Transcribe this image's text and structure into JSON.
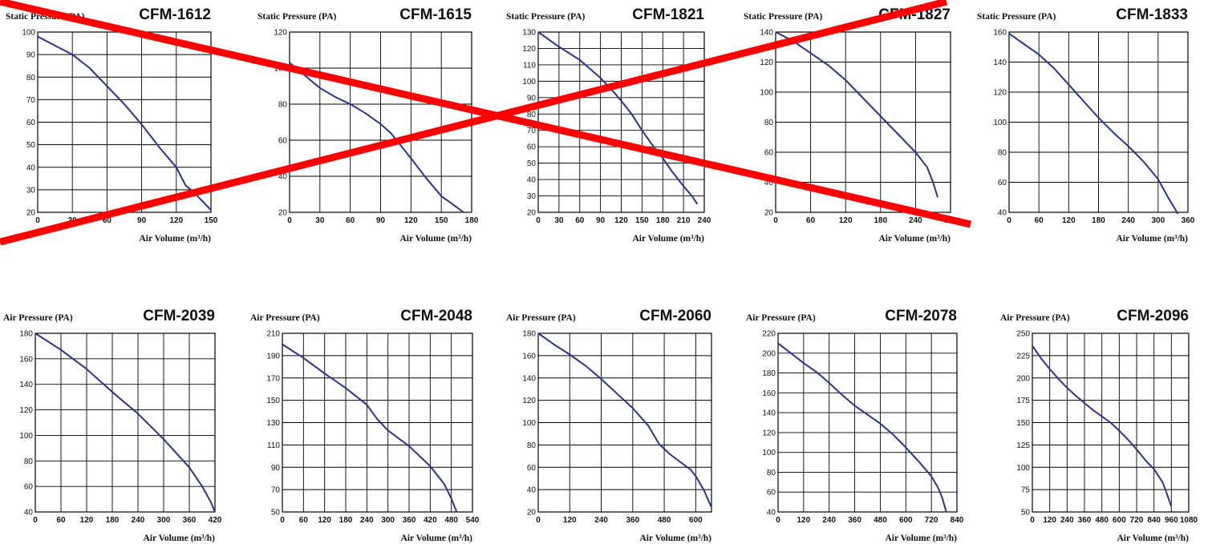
{
  "colors": {
    "curve": "#2e3190",
    "cross": "#ff0000",
    "grid": "#000000"
  },
  "chart_data": [
    {
      "type": "line",
      "title": "CFM-1612",
      "ylabel": "Static Pressure (PA)",
      "xlabel": "Air Volume (m³/h)",
      "xlim": [
        0,
        150
      ],
      "ylim": [
        20,
        100
      ],
      "xticks": [
        0,
        30,
        60,
        90,
        120,
        150
      ],
      "yticks": [
        20,
        30,
        40,
        50,
        60,
        70,
        80,
        90,
        100
      ],
      "x": [
        0,
        15,
        30,
        45,
        60,
        75,
        90,
        105,
        120,
        128,
        135,
        150
      ],
      "y": [
        98,
        94,
        90,
        84,
        76,
        68,
        59,
        49,
        40,
        32,
        29,
        21
      ],
      "crossed_out": true
    },
    {
      "type": "line",
      "title": "CFM-1615",
      "ylabel": "Static Pressure (PA)",
      "xlabel": "Air Volume (m³/h)",
      "xlim": [
        0,
        180
      ],
      "ylim": [
        20,
        120
      ],
      "xticks": [
        0,
        30,
        60,
        90,
        120,
        150,
        180
      ],
      "yticks": [
        20,
        40,
        60,
        80,
        100,
        120
      ],
      "x": [
        0,
        15,
        30,
        45,
        60,
        75,
        90,
        100,
        110,
        120,
        135,
        150,
        160,
        172
      ],
      "y": [
        103,
        96,
        89,
        84,
        80,
        75,
        69,
        64,
        57,
        50,
        39,
        29,
        25,
        20
      ],
      "crossed_out": true
    },
    {
      "type": "line",
      "title": "CFM-1821",
      "ylabel": "Static Pressure (PA)",
      "xlabel": "Air Volume (m³/h)",
      "xlim": [
        0,
        240
      ],
      "ylim": [
        20,
        130
      ],
      "xticks": [
        0,
        30,
        60,
        90,
        120,
        150,
        180,
        210,
        240
      ],
      "yticks": [
        20,
        30,
        40,
        50,
        60,
        70,
        80,
        90,
        100,
        110,
        120,
        130
      ],
      "x": [
        0,
        30,
        60,
        90,
        110,
        120,
        135,
        150,
        165,
        180,
        195,
        210,
        222,
        230
      ],
      "y": [
        130,
        121,
        113,
        102,
        93,
        88,
        80,
        70,
        61,
        53,
        44,
        36,
        30,
        25
      ],
      "crossed_out": true
    },
    {
      "type": "line",
      "title": "CFM-1827",
      "ylabel": "Static Pressure (PA)",
      "xlabel": "Air Volume (m³/h)",
      "xlim": [
        0,
        300
      ],
      "ylim": [
        20,
        140
      ],
      "xticks": [
        0,
        60,
        120,
        180,
        240,
        300
      ],
      "yticks": [
        20,
        40,
        60,
        80,
        100,
        120,
        140
      ],
      "x": [
        0,
        30,
        60,
        90,
        120,
        150,
        180,
        210,
        240,
        260,
        270,
        278
      ],
      "y": [
        140,
        134,
        126,
        118,
        108,
        96,
        84,
        72,
        60,
        50,
        40,
        30
      ],
      "crossed_out": true
    },
    {
      "type": "line",
      "title": "CFM-1833",
      "ylabel": "Static Pressure (PA)",
      "xlabel": "Air Volume (m³/h)",
      "xlim": [
        0,
        360
      ],
      "ylim": [
        40,
        160
      ],
      "xticks": [
        0,
        60,
        120,
        180,
        240,
        300,
        360
      ],
      "yticks": [
        40,
        60,
        80,
        100,
        120,
        140,
        160
      ],
      "x": [
        0,
        30,
        60,
        90,
        120,
        150,
        180,
        210,
        240,
        270,
        300,
        320,
        340
      ],
      "y": [
        159,
        152,
        145,
        136,
        125,
        114,
        103,
        93,
        84,
        74,
        62,
        50,
        39
      ],
      "crossed_out": false
    },
    {
      "type": "line",
      "title": "CFM-2039",
      "ylabel": "Air Pressure (PA)",
      "xlabel": "Air Volume (m³/h)",
      "xlim": [
        0,
        420
      ],
      "ylim": [
        40,
        180
      ],
      "xticks": [
        0,
        60,
        120,
        180,
        240,
        300,
        360,
        420
      ],
      "yticks": [
        40,
        60,
        80,
        100,
        120,
        140,
        160,
        180
      ],
      "x": [
        0,
        60,
        120,
        180,
        240,
        300,
        360,
        390,
        410,
        420
      ],
      "y": [
        180,
        167,
        152,
        134,
        117,
        97,
        75,
        60,
        48,
        40
      ],
      "crossed_out": false
    },
    {
      "type": "line",
      "title": "CFM-2048",
      "ylabel": "Air Pressure (PA)",
      "xlabel": "Air Volume (m³/h)",
      "xlim": [
        0,
        540
      ],
      "ylim": [
        50,
        210
      ],
      "xticks": [
        0,
        60,
        120,
        180,
        240,
        300,
        360,
        420,
        480,
        540
      ],
      "yticks": [
        50,
        70,
        90,
        110,
        130,
        150,
        170,
        190,
        210
      ],
      "x": [
        0,
        60,
        120,
        180,
        240,
        270,
        300,
        360,
        420,
        460,
        480,
        495
      ],
      "y": [
        200,
        188,
        174,
        161,
        146,
        133,
        123,
        109,
        91,
        75,
        62,
        50
      ],
      "crossed_out": false
    },
    {
      "type": "line",
      "title": "CFM-2060",
      "ylabel": "Air Pressure (PA)",
      "xlabel": "Air Volume (m³/h)",
      "xlim": [
        0,
        660
      ],
      "ylim": [
        20,
        180
      ],
      "xticks": [
        0,
        120,
        240,
        360,
        480,
        600
      ],
      "yticks": [
        20,
        40,
        60,
        80,
        100,
        120,
        140,
        160,
        180
      ],
      "x": [
        0,
        60,
        120,
        180,
        240,
        300,
        360,
        420,
        460,
        500,
        540,
        580,
        600,
        630,
        660
      ],
      "y": [
        180,
        170,
        161,
        151,
        139,
        126,
        113,
        97,
        81,
        72,
        65,
        58,
        52,
        40,
        24
      ],
      "crossed_out": false
    },
    {
      "type": "line",
      "title": "CFM-2078",
      "ylabel": "Air Pressure (PA)",
      "xlabel": "Air Volume (m³/h)",
      "xlim": [
        0,
        840
      ],
      "ylim": [
        40,
        220
      ],
      "xticks": [
        0,
        120,
        240,
        360,
        480,
        600,
        720,
        840
      ],
      "yticks": [
        40,
        60,
        80,
        100,
        120,
        140,
        160,
        180,
        200,
        220
      ],
      "x": [
        0,
        60,
        120,
        180,
        240,
        300,
        360,
        420,
        480,
        540,
        600,
        660,
        720,
        750,
        770,
        790
      ],
      "y": [
        210,
        200,
        190,
        181,
        170,
        158,
        147,
        138,
        129,
        118,
        105,
        91,
        76,
        65,
        55,
        40
      ],
      "crossed_out": false
    },
    {
      "type": "line",
      "title": "CFM-2096",
      "ylabel": "Air Pressure (PA)",
      "xlabel": "Air Volume (m³/h)",
      "xlim": [
        0,
        1080
      ],
      "ylim": [
        50,
        250
      ],
      "xticks": [
        0,
        120,
        240,
        360,
        480,
        600,
        720,
        840,
        960,
        1080
      ],
      "yticks": [
        50,
        75,
        100,
        125,
        150,
        175,
        200,
        225,
        250
      ],
      "x": [
        0,
        60,
        120,
        180,
        240,
        300,
        360,
        420,
        480,
        540,
        600,
        660,
        720,
        780,
        840,
        900,
        930,
        960
      ],
      "y": [
        236,
        222,
        210,
        199,
        189,
        180,
        172,
        164,
        157,
        150,
        141,
        131,
        120,
        108,
        98,
        83,
        70,
        56
      ],
      "crossed_out": false
    }
  ]
}
